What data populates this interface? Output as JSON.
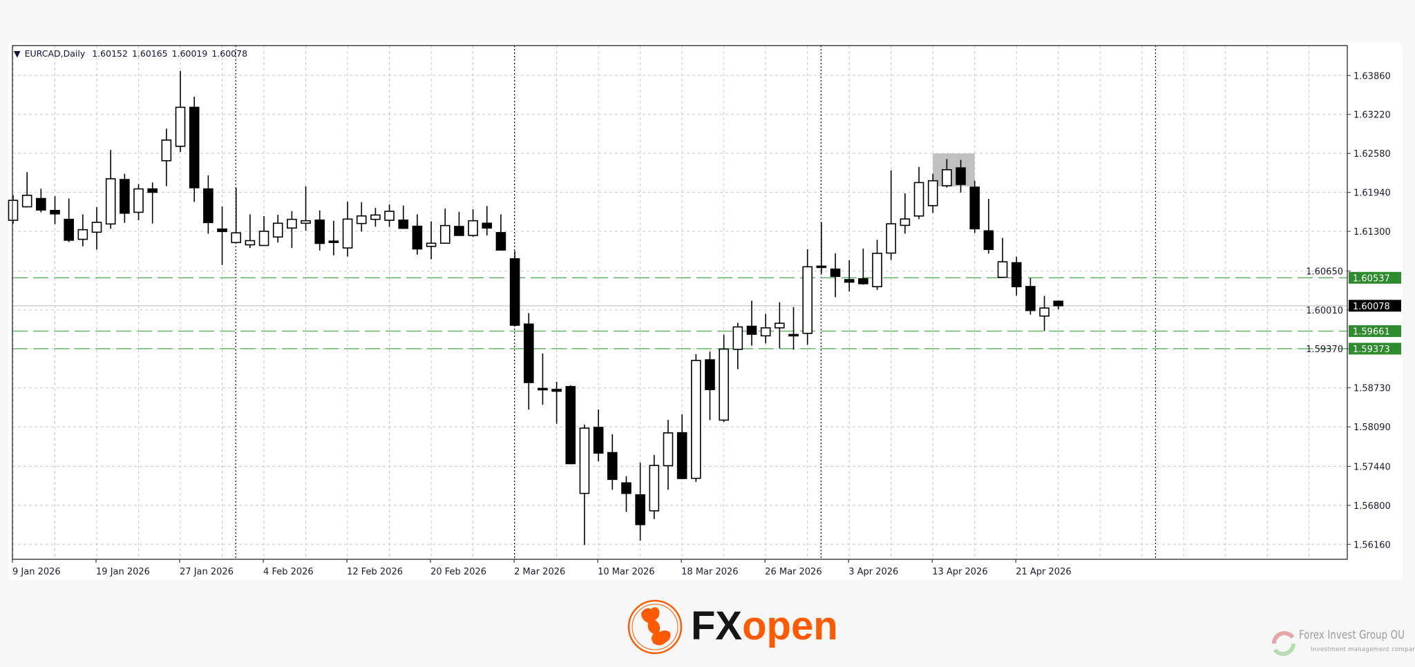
{
  "header": {
    "symbol_label": "EURCAD,Daily",
    "open": "1.60152",
    "high": "1.60165",
    "low": "1.60019",
    "close": "1.60078",
    "dropdown_icon": "triangle-down-icon"
  },
  "chart_data": {
    "type": "candlestick",
    "symbol": "EURCAD",
    "timeframe": "Daily",
    "grid": true,
    "ylim": [
      1.56,
      1.643
    ],
    "y_ticks": [
      "1.63860",
      "1.63220",
      "1.62580",
      "1.61940",
      "1.61300",
      "1.60650",
      "1.60010",
      "1.59370",
      "1.58730",
      "1.58090",
      "1.57440",
      "1.56800",
      "1.56160"
    ],
    "x_tick_labels": [
      {
        "date": "2026-01-09",
        "label": "9 Jan 2026"
      },
      {
        "date": "2026-01-19",
        "label": "19 Jan 2026"
      },
      {
        "date": "2026-01-27",
        "label": "27 Jan 2026"
      },
      {
        "date": "2026-02-04",
        "label": "4 Feb 2026"
      },
      {
        "date": "2026-02-12",
        "label": "12 Feb 2026"
      },
      {
        "date": "2026-02-20",
        "label": "20 Feb 2026"
      },
      {
        "date": "2026-03-02",
        "label": "2 Mar 2026"
      },
      {
        "date": "2026-03-10",
        "label": "10 Mar 2026"
      },
      {
        "date": "2026-03-18",
        "label": "18 Mar 2026"
      },
      {
        "date": "2026-03-26",
        "label": "26 Mar 2026"
      },
      {
        "date": "2026-04-03",
        "label": "3 Apr 2026"
      },
      {
        "date": "2026-04-13",
        "label": "13 Apr 2026"
      },
      {
        "date": "2026-04-21",
        "label": "21 Apr 2026"
      }
    ],
    "month_separators": [
      "2026-02-02",
      "2026-03-02",
      "2026-04-01",
      "2026-05-01"
    ],
    "candles_columns": [
      "date",
      "open",
      "high",
      "low",
      "close"
    ],
    "candles": [
      [
        "2026-01-09",
        1.61482,
        1.61895,
        1.61425,
        1.61809
      ],
      [
        "2026-01-12",
        1.61703,
        1.62272,
        1.61692,
        1.61892
      ],
      [
        "2026-01-13",
        1.61839,
        1.62001,
        1.6161,
        1.61651
      ],
      [
        "2026-01-14",
        1.61643,
        1.61877,
        1.61418,
        1.61587
      ],
      [
        "2026-01-15",
        1.61497,
        1.61839,
        1.61124,
        1.61154
      ],
      [
        "2026-01-16",
        1.61169,
        1.61579,
        1.61053,
        1.61327
      ],
      [
        "2026-01-19",
        1.61286,
        1.61696,
        1.61,
        1.61448
      ],
      [
        "2026-01-20",
        1.61421,
        1.62637,
        1.61342,
        1.62163
      ],
      [
        "2026-01-21",
        1.62151,
        1.62245,
        1.6144,
        1.61598
      ],
      [
        "2026-01-22",
        1.61613,
        1.62076,
        1.61482,
        1.61997
      ],
      [
        "2026-01-23",
        1.61997,
        1.62102,
        1.61429,
        1.61941
      ],
      [
        "2026-01-26",
        1.6246,
        1.62987,
        1.62042,
        1.62799
      ],
      [
        "2026-01-27",
        1.62697,
        1.63935,
        1.62603,
        1.63337
      ],
      [
        "2026-01-28",
        1.63337,
        1.6351,
        1.61783,
        1.62016
      ],
      [
        "2026-01-29",
        1.61997,
        1.62219,
        1.6126,
        1.61444
      ],
      [
        "2026-01-30",
        1.61338,
        1.61707,
        1.60748,
        1.61297
      ],
      [
        "2026-02-02",
        1.61116,
        1.62016,
        1.61105,
        1.61275
      ],
      [
        "2026-02-03",
        1.61079,
        1.61579,
        1.61026,
        1.61147
      ],
      [
        "2026-02-04",
        1.61068,
        1.61549,
        1.61068,
        1.61301
      ],
      [
        "2026-02-05",
        1.61207,
        1.61572,
        1.61117,
        1.61433
      ],
      [
        "2026-02-06",
        1.61354,
        1.61632,
        1.61027,
        1.61497
      ],
      [
        "2026-02-09",
        1.61433,
        1.62039,
        1.61312,
        1.61474
      ],
      [
        "2026-02-10",
        1.61485,
        1.61644,
        1.60985,
        1.61102
      ],
      [
        "2026-02-11",
        1.6114,
        1.61474,
        1.60906,
        1.61135
      ],
      [
        "2026-02-12",
        1.61027,
        1.61787,
        1.60887,
        1.61501
      ],
      [
        "2026-02-13",
        1.61429,
        1.61779,
        1.61297,
        1.61553
      ],
      [
        "2026-02-16",
        1.61497,
        1.61685,
        1.61376,
        1.61568
      ],
      [
        "2026-02-17",
        1.61482,
        1.61741,
        1.61373,
        1.61629
      ],
      [
        "2026-02-18",
        1.61485,
        1.61723,
        1.61343,
        1.6135
      ],
      [
        "2026-02-19",
        1.61384,
        1.6158,
        1.60917,
        1.61011
      ],
      [
        "2026-02-20",
        1.61053,
        1.61463,
        1.60842,
        1.61105
      ],
      [
        "2026-02-23",
        1.61105,
        1.61674,
        1.61105,
        1.61395
      ],
      [
        "2026-02-24",
        1.6138,
        1.61621,
        1.61233,
        1.61233
      ],
      [
        "2026-02-25",
        1.61233,
        1.61662,
        1.61207,
        1.61474
      ],
      [
        "2026-02-26",
        1.61433,
        1.61715,
        1.61233,
        1.61354
      ],
      [
        "2026-02-27",
        1.61279,
        1.6158,
        1.60985,
        1.60993
      ],
      [
        "2026-03-02",
        1.60849,
        1.60977,
        1.5974,
        1.59758
      ],
      [
        "2026-03-03",
        1.59777,
        1.59958,
        1.58373,
        1.58817
      ],
      [
        "2026-03-04",
        1.5872,
        1.59295,
        1.58452,
        1.58712
      ],
      [
        "2026-03-05",
        1.58704,
        1.58829,
        1.5814,
        1.58674
      ],
      [
        "2026-03-06",
        1.5875,
        1.58772,
        1.57474,
        1.57485
      ],
      [
        "2026-03-09",
        1.56996,
        1.58125,
        1.56149,
        1.58068
      ],
      [
        "2026-03-10",
        1.5808,
        1.58373,
        1.57523,
        1.57658
      ],
      [
        "2026-03-11",
        1.57666,
        1.57967,
        1.57056,
        1.57226
      ],
      [
        "2026-03-12",
        1.57169,
        1.57278,
        1.56691,
        1.56996
      ],
      [
        "2026-03-13",
        1.56973,
        1.575,
        1.56221,
        1.56484
      ],
      [
        "2026-03-16",
        1.5671,
        1.57628,
        1.56575,
        1.57455
      ],
      [
        "2026-03-17",
        1.57451,
        1.58204,
        1.57056,
        1.5799
      ],
      [
        "2026-03-18",
        1.57993,
        1.58294,
        1.57229,
        1.57241
      ],
      [
        "2026-03-19",
        1.57244,
        1.59284,
        1.57184,
        1.59179
      ],
      [
        "2026-03-20",
        1.5919,
        1.59325,
        1.582,
        1.58701
      ],
      [
        "2026-03-23",
        1.582,
        1.59603,
        1.5817,
        1.59366
      ],
      [
        "2026-03-24",
        1.59362,
        1.59798,
        1.59036,
        1.5973
      ],
      [
        "2026-03-25",
        1.59741,
        1.60162,
        1.59422,
        1.5961
      ],
      [
        "2026-03-26",
        1.59584,
        1.59944,
        1.5946,
        1.59715
      ],
      [
        "2026-03-27",
        1.59715,
        1.60136,
        1.59377,
        1.5979
      ],
      [
        "2026-03-30",
        1.59606,
        1.60057,
        1.59358,
        1.596
      ],
      [
        "2026-03-31",
        1.59625,
        1.61007,
        1.59437,
        1.60718
      ],
      [
        "2026-04-01",
        1.60729,
        1.61446,
        1.60605,
        1.60722
      ],
      [
        "2026-04-02",
        1.6068,
        1.60939,
        1.60218,
        1.6056
      ],
      [
        "2026-04-03",
        1.60507,
        1.60827,
        1.60312,
        1.60466
      ],
      [
        "2026-04-06",
        1.60522,
        1.61018,
        1.60425,
        1.6044
      ],
      [
        "2026-04-07",
        1.60391,
        1.61161,
        1.60338,
        1.60939
      ],
      [
        "2026-04-08",
        1.60943,
        1.62301,
        1.6083,
        1.61424
      ],
      [
        "2026-04-09",
        1.61398,
        1.61925,
        1.61263,
        1.61503
      ],
      [
        "2026-04-10",
        1.61552,
        1.62357,
        1.615,
        1.62101
      ],
      [
        "2026-04-13",
        1.61722,
        1.62244,
        1.61601,
        1.62131
      ],
      [
        "2026-04-14",
        1.62049,
        1.62489,
        1.62019,
        1.62312
      ],
      [
        "2026-04-15",
        1.62342,
        1.62474,
        1.61936,
        1.62071
      ],
      [
        "2026-04-16",
        1.62026,
        1.62131,
        1.61274,
        1.61342
      ],
      [
        "2026-04-17",
        1.61308,
        1.61834,
        1.60936,
        1.61003
      ],
      [
        "2026-04-20",
        1.60545,
        1.61191,
        1.60533,
        1.608
      ],
      [
        "2026-04-21",
        1.60785,
        1.60883,
        1.60244,
        1.60391
      ],
      [
        "2026-04-22",
        1.60394,
        1.60533,
        1.59932,
        1.6
      ],
      [
        "2026-04-23",
        1.59909,
        1.6024,
        1.59661,
        1.60041
      ],
      [
        "2026-04-24",
        1.60152,
        1.60165,
        1.60019,
        1.60078
      ]
    ],
    "horizontal_levels": [
      {
        "price": 1.60537,
        "label": "1.60537",
        "color": "#2e8b2e"
      },
      {
        "price": 1.59661,
        "label": "1.59661",
        "color": "#2e8b2e"
      },
      {
        "price": 1.59373,
        "label": "1.59373",
        "color": "#2e8b2e"
      }
    ],
    "current_price": {
      "price": 1.60078,
      "label": "1.60078",
      "color": "#000000"
    },
    "highlight_zone": {
      "from": "2026-04-13",
      "to": "2026-04-16",
      "price_top": 1.6258,
      "price_bottom": 1.6204,
      "color": "#c0c0c0"
    },
    "colors": {
      "bull_fill": "#ffffff",
      "bear_fill": "#000000",
      "outline": "#000000",
      "grid": "#c8c8c8",
      "level_line": "#5aaf5a",
      "current_line": "#c0c0c0"
    }
  },
  "branding": {
    "logo_text_1": "FX",
    "logo_text_2": "open",
    "brand_color": "#ff5a00",
    "watermark_title": "Forex Invest Group OU",
    "watermark_subtitle": "Investment management company"
  }
}
